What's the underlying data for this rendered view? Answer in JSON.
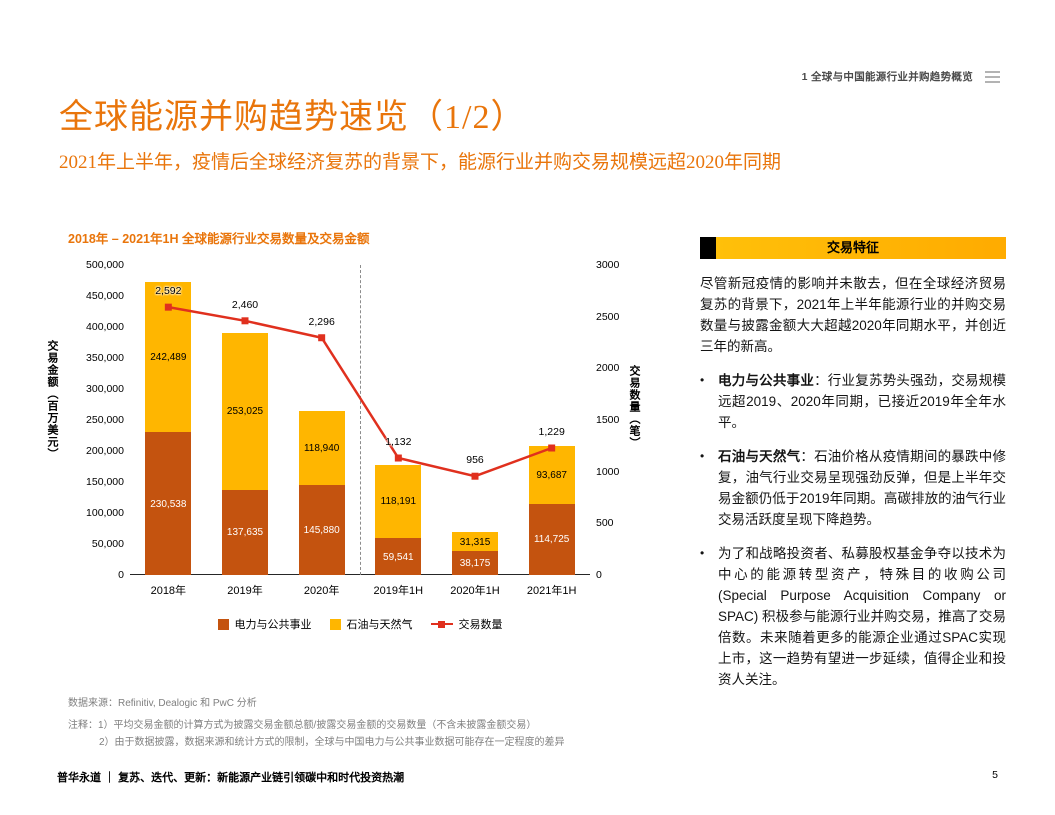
{
  "page": {
    "header_right": "1 全球与中国能源行业并购趋势概览",
    "title": "全球能源并购趋势速览（1/2）",
    "subtitle": "2021年上半年，疫情后全球经济复苏的背景下，能源行业并购交易规模远超2020年同期",
    "footer_left": "普华永道 ｜ 复苏、迭代、更新：新能源产业链引领碳中和时代投资热潮",
    "page_number": "5"
  },
  "chart_data": {
    "type": "bar",
    "subtype": "stacked-bar-with-line",
    "title": "2018年 – 2021年1H 全球能源行业交易数量及交易金额",
    "categories": [
      "2018年",
      "2019年",
      "2020年",
      "2019年1H",
      "2020年1H",
      "2021年1H"
    ],
    "series": [
      {
        "name": "电力与公共事业",
        "type": "bar",
        "color": "#c4530f",
        "axis": "left",
        "values": [
          230538,
          137635,
          145880,
          59541,
          38175,
          114725
        ]
      },
      {
        "name": "石油与天然气",
        "type": "bar",
        "color": "#ffb600",
        "axis": "left",
        "values": [
          242489,
          253025,
          118940,
          118191,
          31315,
          93687
        ]
      },
      {
        "name": "交易数量",
        "type": "line",
        "color": "#e0301e",
        "axis": "right",
        "values": [
          2592,
          2460,
          2296,
          1132,
          956,
          1229
        ]
      }
    ],
    "left_axis": {
      "label": "交易金额（百万美元）",
      "min": 0,
      "max": 500000,
      "step": 50000
    },
    "right_axis": {
      "label": "交易数量（笔）",
      "min": 0,
      "max": 3000,
      "step": 500
    },
    "divider_after_index": 2,
    "legend_position": "bottom",
    "grid": false
  },
  "panel": {
    "header": "交易特征",
    "intro": "尽管新冠疫情的影响并未散去，但在全球经济贸易复苏的背景下，2021年上半年能源行业的并购交易数量与披露金额大大超越2020年同期水平，并创近三年的新高。",
    "bullets": [
      {
        "lead": "电力与公共事业",
        "text": "：行业复苏势头强劲，交易规模远超2019、2020年同期，已接近2019年全年水平。"
      },
      {
        "lead": "石油与天然气",
        "text": "：石油价格从疫情期间的暴跌中修复，油气行业交易呈现强劲反弹，但是上半年交易金额仍低于2019年同期。高碳排放的油气行业交易活跃度呈现下降趋势。"
      },
      {
        "lead": "",
        "text": "为了和战略投资者、私募股权基金争夺以技术为中心的能源转型资产，特殊目的收购公司 (Special Purpose Acquisition Company or SPAC) 积极参与能源行业并购交易，推高了交易倍数。未来随着更多的能源企业通过SPAC实现上市，这一趋势有望进一步延续，值得企业和投资人关注。"
      }
    ]
  },
  "notes": {
    "source": "数据来源：Refinitiv, Dealogic 和 PwC 分析",
    "note1": "注释：1）平均交易金额的计算方式为披露交易金额总额/披露交易金额的交易数量（不含未披露金额交易）",
    "note2": "2）由于数据披露，数据来源和统计方式的限制，全球与中国电力与公共事业数据可能存在一定程度的差异"
  },
  "colors": {
    "accent_orange": "#e9750b",
    "panel_header_bg": "#ffb600",
    "bar_power": "#c4530f",
    "bar_oil": "#ffb600",
    "line_red": "#e0301e"
  }
}
